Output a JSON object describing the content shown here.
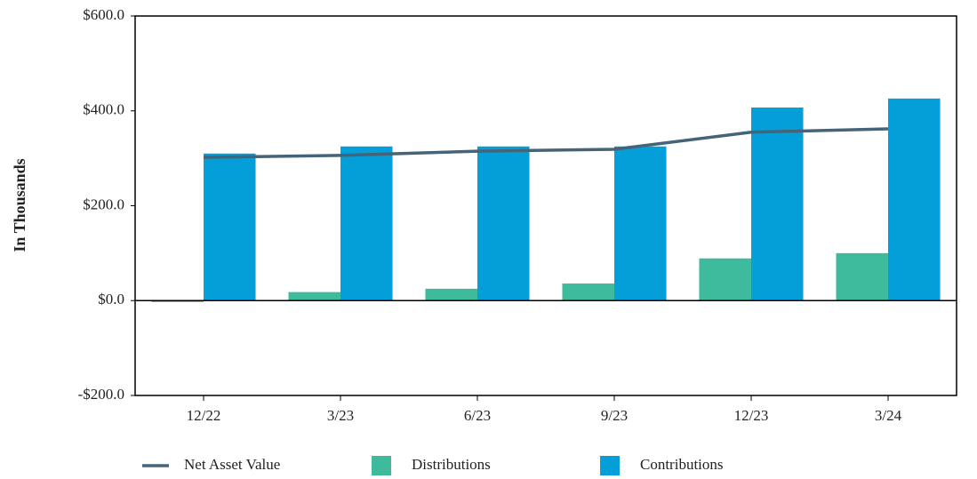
{
  "chart_data": {
    "type": "bar",
    "y_axis_label": "In Thousands",
    "categories": [
      "12/22",
      "3/23",
      "6/23",
      "9/23",
      "12/23",
      "3/24"
    ],
    "series": [
      {
        "name": "Net Asset Value",
        "type": "line",
        "color": "#456478",
        "values": [
          302,
          306,
          315,
          319,
          355,
          362
        ]
      },
      {
        "name": "Distributions",
        "type": "bar",
        "color": "#3dbb9c",
        "values": [
          -3,
          18,
          25,
          36,
          89,
          100
        ]
      },
      {
        "name": "Contributions",
        "type": "bar",
        "color": "#049fd9",
        "values": [
          310,
          325,
          325,
          325,
          407,
          426
        ]
      }
    ],
    "ylim": [
      -200,
      600
    ],
    "yticks": [
      {
        "value": -200,
        "label": "-$200.0"
      },
      {
        "value": 0,
        "label": "$0.0"
      },
      {
        "value": 200,
        "label": "$200.0"
      },
      {
        "value": 400,
        "label": "$400.0"
      },
      {
        "value": 600,
        "label": "$600.0"
      }
    ],
    "grid": false,
    "legend": "bottom"
  }
}
